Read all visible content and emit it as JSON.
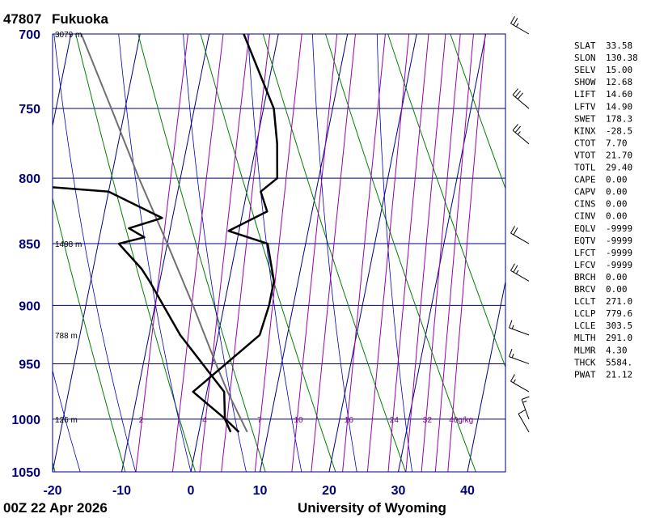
{
  "header": {
    "station": "47807",
    "name": "Fukuoka"
  },
  "footer": {
    "time": "00Z 22 Apr 2026",
    "source": "University of Wyoming"
  },
  "colors": {
    "isobar": "#000080",
    "isotherm": "#000080",
    "dry_adiabat": "#008000",
    "moist_adiabat": "#0000c0",
    "mixing_ratio": "#9900aa",
    "temperature": "#000000",
    "dewpoint": "#000000",
    "parcel": "#707070"
  },
  "chart_data": {
    "type": "skew-t",
    "pressure_axis": {
      "ticks": [
        700,
        750,
        800,
        850,
        900,
        950,
        1000,
        1050
      ],
      "range": [
        700,
        1050
      ],
      "scale": "log"
    },
    "temperature_axis": {
      "ticks": [
        -20,
        -10,
        0,
        10,
        20,
        30,
        40
      ],
      "range": [
        -20,
        45
      ]
    },
    "heights": [
      {
        "p": 700,
        "label": "3079 m"
      },
      {
        "p": 850,
        "label": "1498 m"
      },
      {
        "p": 925,
        "label": "788 m"
      },
      {
        "p": 1000,
        "label": "126 m"
      }
    ],
    "mixing_ratio_labels": [
      "2",
      "4",
      "7",
      "10",
      "16",
      "24",
      "32",
      "40g/kg"
    ],
    "temperature": [
      {
        "p": 1012,
        "t": 5.8
      },
      {
        "p": 1000,
        "t": 3.5
      },
      {
        "p": 975,
        "t": -2.0
      },
      {
        "p": 925,
        "t": 6.0
      },
      {
        "p": 900,
        "t": 6.5
      },
      {
        "p": 880,
        "t": 6.5
      },
      {
        "p": 850,
        "t": 4.5
      },
      {
        "p": 840,
        "t": -1.5
      },
      {
        "p": 825,
        "t": 3.5
      },
      {
        "p": 810,
        "t": 2.0
      },
      {
        "p": 800,
        "t": 4.0
      },
      {
        "p": 775,
        "t": 3.0
      },
      {
        "p": 750,
        "t": 1.5
      },
      {
        "p": 700,
        "t": -5.0
      }
    ],
    "dewpoint": [
      {
        "p": 1012,
        "t": 4.6
      },
      {
        "p": 1000,
        "t": 3.4
      },
      {
        "p": 975,
        "t": 2.5
      },
      {
        "p": 925,
        "t": -5.5
      },
      {
        "p": 880,
        "t": -11.5
      },
      {
        "p": 870,
        "t": -13.0
      },
      {
        "p": 850,
        "t": -17.0
      },
      {
        "p": 845,
        "t": -13.5
      },
      {
        "p": 838,
        "t": -16.0
      },
      {
        "p": 830,
        "t": -11.5
      },
      {
        "p": 810,
        "t": -20.0
      },
      {
        "p": 801,
        "t": -43.0
      }
    ],
    "parcel": [
      {
        "p": 1012,
        "t": 7.0
      },
      {
        "p": 975,
        "t": 3.0
      },
      {
        "p": 950,
        "t": 0.5
      },
      {
        "p": 900,
        "t": -4.5
      },
      {
        "p": 850,
        "t": -10.0
      },
      {
        "p": 800,
        "t": -16.0
      },
      {
        "p": 750,
        "t": -22.0
      },
      {
        "p": 700,
        "t": -28.5
      }
    ],
    "wind_barbs": [
      {
        "p": 700,
        "dir": 300,
        "kt": 25
      },
      {
        "p": 750,
        "dir": 310,
        "kt": 30
      },
      {
        "p": 775,
        "dir": 310,
        "kt": 25
      },
      {
        "p": 850,
        "dir": 300,
        "kt": 20
      },
      {
        "p": 880,
        "dir": 300,
        "kt": 25
      },
      {
        "p": 925,
        "dir": 290,
        "kt": 15
      },
      {
        "p": 950,
        "dir": 290,
        "kt": 15
      },
      {
        "p": 975,
        "dir": 300,
        "kt": 15
      },
      {
        "p": 1000,
        "dir": 340,
        "kt": 15
      },
      {
        "p": 1012,
        "dir": 330,
        "kt": 10
      }
    ],
    "indices": [
      {
        "name": "SLAT",
        "value": "33.58"
      },
      {
        "name": "SLON",
        "value": "130.38"
      },
      {
        "name": "SELV",
        "value": "15.00"
      },
      {
        "name": "SHOW",
        "value": "12.68"
      },
      {
        "name": "LIFT",
        "value": "14.60"
      },
      {
        "name": "LFTV",
        "value": "14.90"
      },
      {
        "name": "SWET",
        "value": "178.3"
      },
      {
        "name": "KINX",
        "value": "-28.5"
      },
      {
        "name": "CTOT",
        "value": "7.70"
      },
      {
        "name": "VTOT",
        "value": "21.70"
      },
      {
        "name": "TOTL",
        "value": "29.40"
      },
      {
        "name": "CAPE",
        "value": "0.00"
      },
      {
        "name": "CAPV",
        "value": "0.00"
      },
      {
        "name": "CINS",
        "value": "0.00"
      },
      {
        "name": "CINV",
        "value": "0.00"
      },
      {
        "name": "EQLV",
        "value": "-9999"
      },
      {
        "name": "EQTV",
        "value": "-9999"
      },
      {
        "name": "LFCT",
        "value": "-9999"
      },
      {
        "name": "LFCV",
        "value": "-9999"
      },
      {
        "name": "BRCH",
        "value": "0.00"
      },
      {
        "name": "BRCV",
        "value": "0.00"
      },
      {
        "name": "LCLT",
        "value": "271.0"
      },
      {
        "name": "LCLP",
        "value": "779.6"
      },
      {
        "name": "LCLE",
        "value": "303.5"
      },
      {
        "name": "MLTH",
        "value": "291.0"
      },
      {
        "name": "MLMR",
        "value": "4.30"
      },
      {
        "name": "THCK",
        "value": "5584."
      },
      {
        "name": "PWAT",
        "value": "21.12"
      }
    ]
  }
}
